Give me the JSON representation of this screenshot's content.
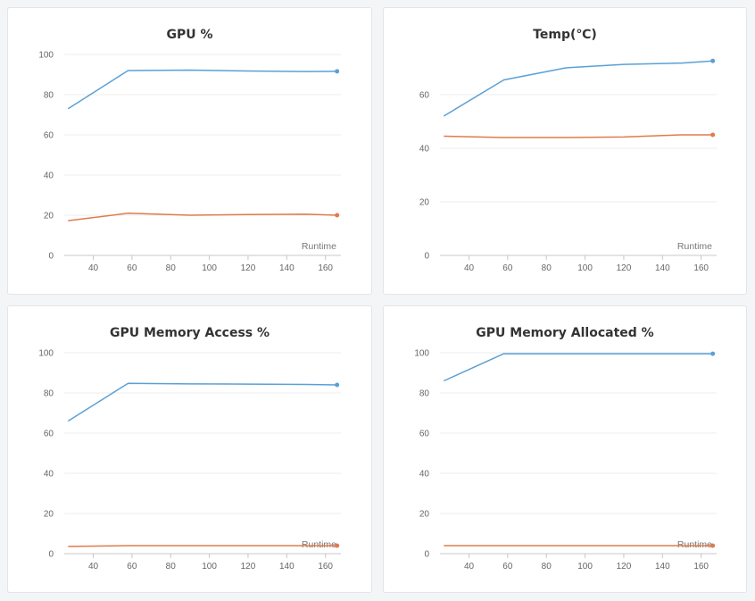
{
  "colors": {
    "series_a": "#5aa0d6",
    "series_b": "#e07b4c"
  },
  "chart_data": [
    {
      "type": "line",
      "title": "GPU %",
      "xlabel": "Runtime",
      "ylabel": "",
      "xlim": [
        25,
        168
      ],
      "ylim": [
        0,
        100
      ],
      "xticks": [
        40,
        60,
        80,
        100,
        120,
        140,
        160
      ],
      "yticks": [
        0,
        20,
        40,
        60,
        80,
        100
      ],
      "grid": true,
      "series": [
        {
          "x": [
            27,
            58,
            90,
            120,
            150,
            166
          ],
          "values": [
            73,
            92,
            92.2,
            91.8,
            91.5,
            91.6
          ]
        },
        {
          "x": [
            27,
            58,
            90,
            120,
            150,
            166
          ],
          "values": [
            17.3,
            21,
            20,
            20.3,
            20.5,
            20
          ]
        }
      ]
    },
    {
      "type": "line",
      "title": "Temp(℃)",
      "xlabel": "Runtime",
      "ylabel": "",
      "xlim": [
        25,
        168
      ],
      "ylim": [
        0,
        75
      ],
      "xticks": [
        40,
        60,
        80,
        100,
        120,
        140,
        160
      ],
      "yticks": [
        0,
        20,
        40,
        60
      ],
      "grid": true,
      "series": [
        {
          "x": [
            27,
            58,
            90,
            120,
            150,
            166
          ],
          "values": [
            52,
            65.5,
            70,
            71.3,
            71.8,
            72.6
          ]
        },
        {
          "x": [
            27,
            58,
            90,
            120,
            150,
            166
          ],
          "values": [
            44.5,
            44,
            44,
            44.2,
            45,
            45
          ]
        }
      ]
    },
    {
      "type": "line",
      "title": "GPU Memory Access %",
      "xlabel": "Runtime",
      "ylabel": "",
      "xlim": [
        25,
        168
      ],
      "ylim": [
        0,
        100
      ],
      "xticks": [
        40,
        60,
        80,
        100,
        120,
        140,
        160
      ],
      "yticks": [
        0,
        20,
        40,
        60,
        80,
        100
      ],
      "grid": true,
      "series": [
        {
          "x": [
            27,
            58,
            90,
            120,
            150,
            166
          ],
          "values": [
            66,
            84.8,
            84.5,
            84.4,
            84.2,
            84
          ]
        },
        {
          "x": [
            27,
            58,
            90,
            120,
            150,
            166
          ],
          "values": [
            3.6,
            4,
            4,
            4,
            4,
            4
          ]
        }
      ]
    },
    {
      "type": "line",
      "title": "GPU Memory Allocated %",
      "xlabel": "Runtime",
      "ylabel": "",
      "xlim": [
        25,
        168
      ],
      "ylim": [
        0,
        100
      ],
      "xticks": [
        40,
        60,
        80,
        100,
        120,
        140,
        160
      ],
      "yticks": [
        0,
        20,
        40,
        60,
        80,
        100
      ],
      "grid": true,
      "series": [
        {
          "x": [
            27,
            58,
            90,
            120,
            150,
            166
          ],
          "values": [
            86,
            99.5,
            99.5,
            99.5,
            99.5,
            99.5
          ]
        },
        {
          "x": [
            27,
            58,
            90,
            120,
            150,
            166
          ],
          "values": [
            4,
            4,
            4,
            4,
            4,
            4
          ]
        }
      ]
    }
  ]
}
